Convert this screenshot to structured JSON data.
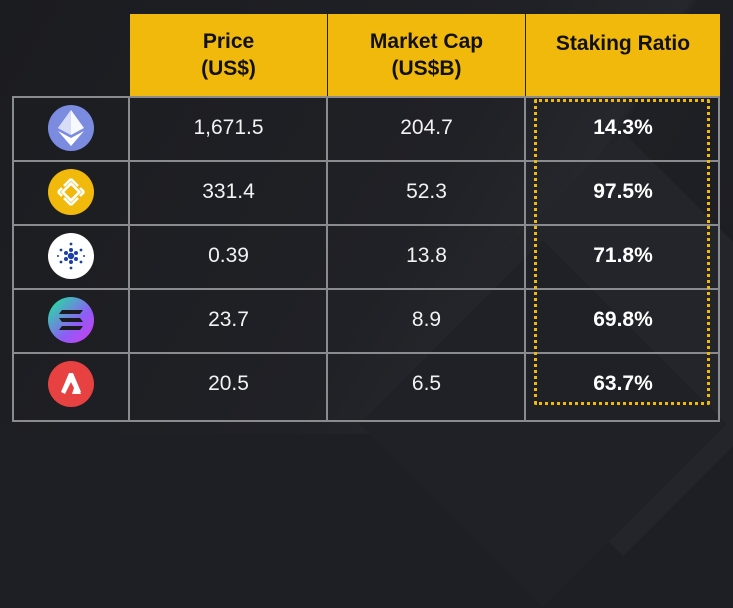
{
  "header": {
    "price": "Price\n(US$)",
    "market_cap": "Market Cap\n(US$B)",
    "staking_ratio": "Staking Ratio"
  },
  "rows": [
    {
      "icon": "ethereum-icon",
      "price": "1,671.5",
      "market_cap": "204.7",
      "staking_ratio": "14.3%"
    },
    {
      "icon": "bnb-icon",
      "price": "331.4",
      "market_cap": "52.3",
      "staking_ratio": "97.5%"
    },
    {
      "icon": "cardano-icon",
      "price": "0.39",
      "market_cap": "13.8",
      "staking_ratio": "71.8%"
    },
    {
      "icon": "solana-icon",
      "price": "23.7",
      "market_cap": "8.9",
      "staking_ratio": "69.8%"
    },
    {
      "icon": "avalanche-icon",
      "price": "20.5",
      "market_cap": "6.5",
      "staking_ratio": "63.7%"
    }
  ],
  "colors": {
    "accent": "#f0b90b",
    "background": "#1e1f24",
    "grid": "#8a8b8f"
  }
}
